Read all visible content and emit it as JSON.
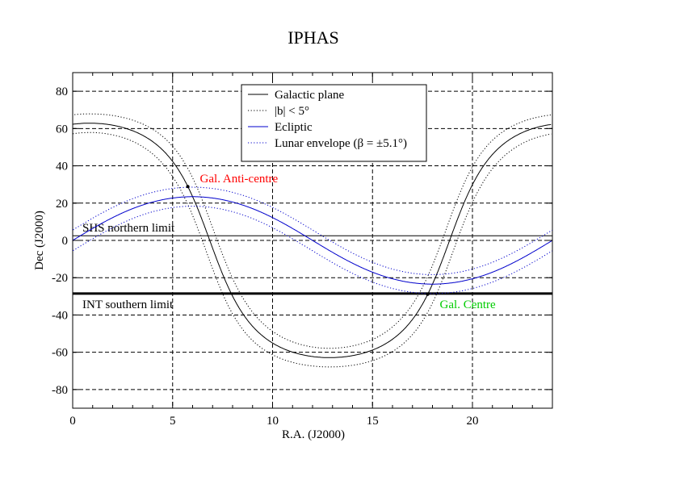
{
  "chart_data": {
    "type": "line",
    "title": "IPHAS",
    "xlabel": "R.A. (J2000)",
    "ylabel": "Dec (J2000)",
    "xlim": [
      0,
      24
    ],
    "ylim": [
      -90,
      90
    ],
    "x_ticks": [
      0,
      5,
      10,
      15,
      20
    ],
    "x_tick_labels": [
      "0",
      "5",
      "10",
      "15",
      "20"
    ],
    "y_ticks": [
      -80,
      -60,
      -40,
      -20,
      0,
      20,
      40,
      60,
      80
    ],
    "y_tick_labels": [
      "-80",
      "-60",
      "-40",
      "-20",
      "0",
      "20",
      "40",
      "60",
      "80"
    ],
    "grid": true,
    "legend_position": "top-center",
    "legend": [
      {
        "label": "Galactic plane",
        "color": "#000000",
        "style": "solid"
      },
      {
        "label": "|b| < 5°",
        "color": "#000000",
        "style": "dotted"
      },
      {
        "label": "Ecliptic",
        "color": "#0000cc",
        "style": "solid"
      },
      {
        "label": "Lunar envelope (β = ±5.1°)",
        "color": "#0000cc",
        "style": "dotted"
      }
    ],
    "series": [
      {
        "name": "Galactic plane",
        "color": "#000000",
        "style": "solid",
        "curve": "galactic",
        "offset": 0
      },
      {
        "name": "|b| < 5°",
        "color": "#000000",
        "style": "dotted",
        "curve": "galactic",
        "offset": 5
      },
      {
        "name": "|b| < 5°",
        "color": "#000000",
        "style": "dotted",
        "curve": "galactic",
        "offset": -5
      },
      {
        "name": "Ecliptic",
        "color": "#0000cc",
        "style": "solid",
        "curve": "ecliptic",
        "offset": 0
      },
      {
        "name": "Lunar envelope (β = ±5.1°)",
        "color": "#0000cc",
        "style": "dotted",
        "curve": "ecliptic",
        "offset": 5.1
      },
      {
        "name": "Lunar envelope (β = ±5.1°)",
        "color": "#0000cc",
        "style": "dotted",
        "curve": "ecliptic",
        "offset": -5.1
      }
    ],
    "limits": [
      {
        "label": "SHS northern limit",
        "dec": 2.5,
        "weight": "thin"
      },
      {
        "label": "INT southern limit",
        "dec": -28.5,
        "weight": "thick"
      }
    ],
    "annotations": [
      {
        "label": "Gal. Anti-centre",
        "ra": 5.76,
        "dec": 28.9,
        "color": "#ff0000"
      },
      {
        "label": "Gal. Centre",
        "ra": 17.76,
        "dec": -28.9,
        "color": "#00cc00"
      }
    ]
  }
}
